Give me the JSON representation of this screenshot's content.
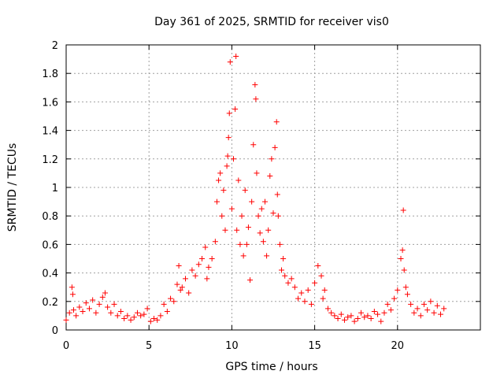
{
  "chart_data": {
    "type": "scatter",
    "title": "Day 361 of 2025, SRMTID for receiver vis0",
    "xlabel": "GPS time / hours",
    "ylabel": "SRMTID / TECUs",
    "xlim": [
      0,
      25
    ],
    "ylim": [
      0,
      2
    ],
    "xticks": [
      0,
      5,
      10,
      15,
      20
    ],
    "xtick_labels": [
      "0",
      "5",
      "10",
      "15",
      "20"
    ],
    "yticks": [
      0,
      0.2,
      0.4,
      0.6,
      0.8,
      1,
      1.2,
      1.4,
      1.6,
      1.8,
      2
    ],
    "ytick_labels": [
      "0",
      "0.2",
      "0.4",
      "0.6",
      "0.8",
      "1",
      "1.2",
      "1.4",
      "1.6",
      "1.8",
      "2"
    ],
    "grid": true,
    "marker": "+",
    "color": "#ff0000",
    "series": [
      {
        "name": "SRMTID",
        "x": [
          0.0,
          0.2,
          0.35,
          0.4,
          0.45,
          0.6,
          0.8,
          1.0,
          1.2,
          1.4,
          1.6,
          1.8,
          2.0,
          2.2,
          2.35,
          2.5,
          2.7,
          2.9,
          3.1,
          3.3,
          3.5,
          3.7,
          3.9,
          4.1,
          4.3,
          4.5,
          4.7,
          4.9,
          5.1,
          5.3,
          5.5,
          5.7,
          5.9,
          6.1,
          6.3,
          6.5,
          6.7,
          6.8,
          6.9,
          7.0,
          7.2,
          7.4,
          7.6,
          7.8,
          8.0,
          8.2,
          8.4,
          8.5,
          8.6,
          8.8,
          9.0,
          9.1,
          9.2,
          9.3,
          9.4,
          9.5,
          9.6,
          9.7,
          9.75,
          9.8,
          9.85,
          9.9,
          10.0,
          10.1,
          10.2,
          10.25,
          10.3,
          10.4,
          10.5,
          10.6,
          10.7,
          10.8,
          10.9,
          11.0,
          11.1,
          11.2,
          11.3,
          11.4,
          11.45,
          11.5,
          11.6,
          11.7,
          11.8,
          11.9,
          12.0,
          12.1,
          12.2,
          12.3,
          12.4,
          12.5,
          12.6,
          12.7,
          12.75,
          12.8,
          12.9,
          13.0,
          13.1,
          13.2,
          13.4,
          13.6,
          13.8,
          14.0,
          14.2,
          14.4,
          14.6,
          14.8,
          15.0,
          15.2,
          15.4,
          15.5,
          15.6,
          15.8,
          16.0,
          16.2,
          16.4,
          16.6,
          16.8,
          17.0,
          17.2,
          17.4,
          17.6,
          17.8,
          18.0,
          18.2,
          18.4,
          18.6,
          18.8,
          19.0,
          19.2,
          19.4,
          19.6,
          19.8,
          20.0,
          20.2,
          20.3,
          20.35,
          20.4,
          20.5,
          20.6,
          20.8,
          21.0,
          21.2,
          21.4,
          21.6,
          21.8,
          22.0,
          22.2,
          22.4,
          22.6,
          22.8
        ],
        "y": [
          0.07,
          0.12,
          0.3,
          0.25,
          0.14,
          0.1,
          0.16,
          0.13,
          0.19,
          0.15,
          0.21,
          0.12,
          0.18,
          0.23,
          0.26,
          0.16,
          0.12,
          0.18,
          0.1,
          0.13,
          0.08,
          0.1,
          0.07,
          0.09,
          0.12,
          0.1,
          0.11,
          0.15,
          0.06,
          0.08,
          0.07,
          0.1,
          0.18,
          0.13,
          0.22,
          0.2,
          0.32,
          0.45,
          0.28,
          0.3,
          0.36,
          0.26,
          0.42,
          0.38,
          0.46,
          0.5,
          0.58,
          0.36,
          0.44,
          0.5,
          0.62,
          0.9,
          1.05,
          1.1,
          0.8,
          0.98,
          0.7,
          1.15,
          1.22,
          1.35,
          1.52,
          1.88,
          0.85,
          1.2,
          1.55,
          1.92,
          0.7,
          1.05,
          0.6,
          0.8,
          0.52,
          0.98,
          0.6,
          0.72,
          0.35,
          0.9,
          1.3,
          1.72,
          1.62,
          1.1,
          0.8,
          0.68,
          0.85,
          0.62,
          0.9,
          0.52,
          0.7,
          1.08,
          1.2,
          0.82,
          1.28,
          1.46,
          0.95,
          0.8,
          0.6,
          0.42,
          0.5,
          0.38,
          0.33,
          0.36,
          0.3,
          0.22,
          0.26,
          0.2,
          0.28,
          0.18,
          0.33,
          0.45,
          0.38,
          0.22,
          0.28,
          0.15,
          0.12,
          0.1,
          0.08,
          0.11,
          0.07,
          0.09,
          0.1,
          0.06,
          0.08,
          0.12,
          0.09,
          0.1,
          0.08,
          0.13,
          0.11,
          0.06,
          0.12,
          0.18,
          0.14,
          0.22,
          0.28,
          0.5,
          0.56,
          0.84,
          0.42,
          0.3,
          0.25,
          0.18,
          0.12,
          0.15,
          0.1,
          0.18,
          0.14,
          0.2,
          0.12,
          0.17,
          0.11,
          0.15
        ]
      }
    ]
  }
}
